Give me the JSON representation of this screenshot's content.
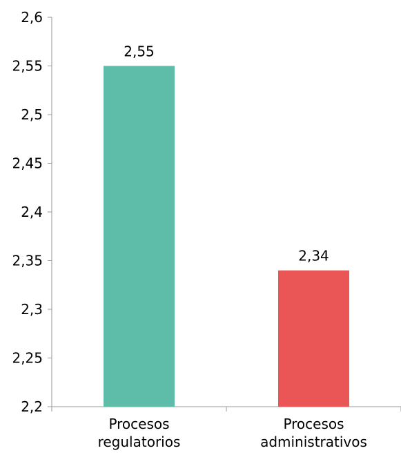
{
  "chart_data": {
    "type": "bar",
    "categories": [
      [
        "Procesos",
        "regulatorios"
      ],
      [
        "Procesos",
        "administrativos"
      ]
    ],
    "values": [
      2.55,
      2.34
    ],
    "data_labels": [
      "2,55",
      "2,34"
    ],
    "colors": [
      "#5dbda9",
      "#ea5555"
    ],
    "title": "",
    "xlabel": "",
    "ylabel": "",
    "ylim": [
      2.2,
      2.6
    ],
    "yticks": [
      2.2,
      2.25,
      2.3,
      2.35,
      2.4,
      2.45,
      2.5,
      2.55,
      2.6
    ],
    "ytick_labels": [
      "2,2",
      "2,25",
      "2,3",
      "2,35",
      "2,4",
      "2,45",
      "2,5",
      "2,55",
      "2,6"
    ],
    "grid": false,
    "legend": "none"
  }
}
